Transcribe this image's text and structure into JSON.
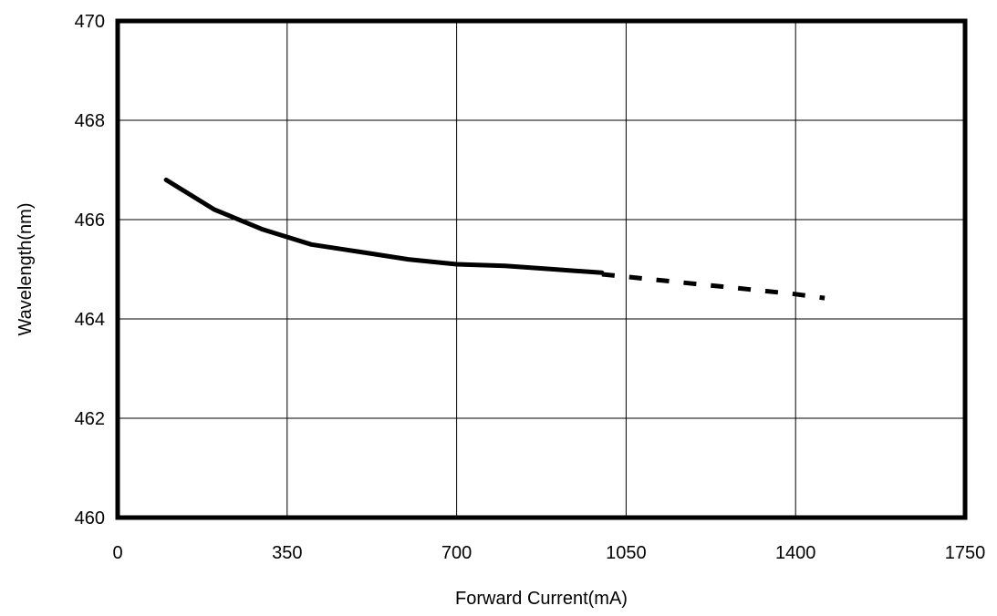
{
  "chart_data": {
    "type": "line",
    "title": "",
    "xlabel": "Forward Current(mA)",
    "ylabel": "Wavelength(nm)",
    "xlim": [
      0,
      1750
    ],
    "ylim": [
      460,
      470
    ],
    "x_ticks": [
      0,
      350,
      700,
      1050,
      1400,
      1750
    ],
    "y_ticks": [
      460,
      462,
      464,
      466,
      468,
      470
    ],
    "x_tick_labels": [
      "0",
      "350",
      "700",
      "1050",
      "1400",
      "1750"
    ],
    "y_tick_labels": [
      "460",
      "462",
      "464",
      "466",
      "468",
      "470"
    ],
    "grid": true,
    "legend": "none",
    "series": [
      {
        "style": "solid",
        "color": "#000000",
        "x": [
          100,
          200,
          300,
          400,
          500,
          600,
          700,
          800,
          900,
          1000
        ],
        "y": [
          466.8,
          466.2,
          465.8,
          465.5,
          465.35,
          465.2,
          465.1,
          465.07,
          465.0,
          464.93
        ]
      },
      {
        "style": "dashed",
        "color": "#000000",
        "x": [
          1000,
          1100,
          1200,
          1300,
          1400,
          1460
        ],
        "y": [
          464.9,
          464.8,
          464.7,
          464.6,
          464.5,
          464.42
        ]
      }
    ]
  }
}
